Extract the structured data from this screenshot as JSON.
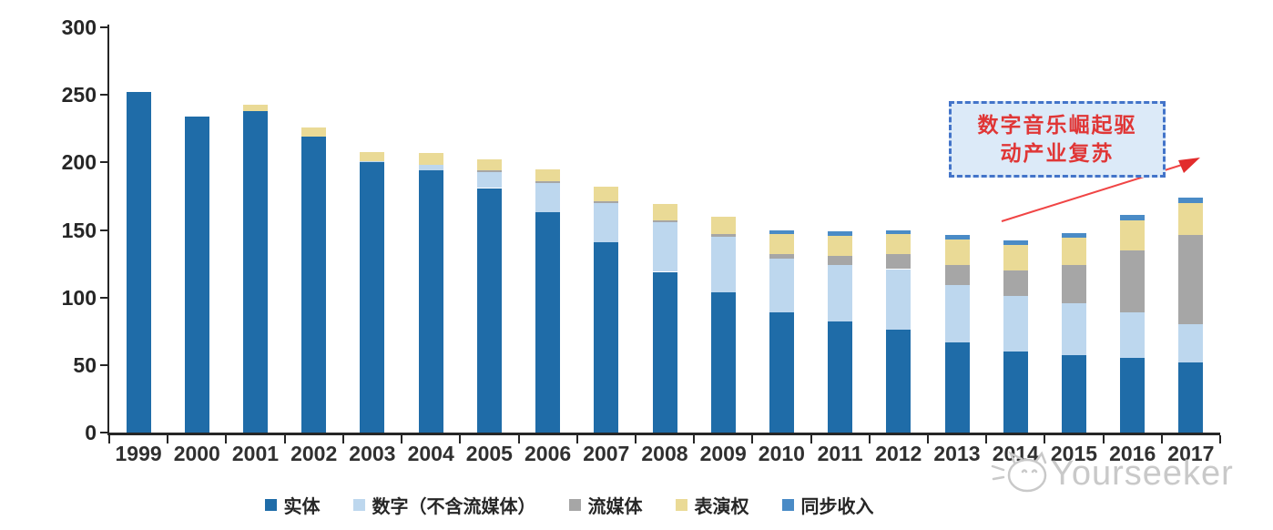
{
  "chart_data": {
    "type": "bar",
    "stacked": true,
    "title": "",
    "xlabel": "",
    "ylabel": "",
    "ylim": [
      0,
      300
    ],
    "y_ticks": [
      0,
      50,
      100,
      150,
      200,
      250,
      300
    ],
    "grid": false,
    "legend_position": "bottom",
    "categories": [
      "1999",
      "2000",
      "2001",
      "2002",
      "2003",
      "2004",
      "2005",
      "2006",
      "2007",
      "2008",
      "2009",
      "2010",
      "2011",
      "2012",
      "2013",
      "2014",
      "2015",
      "2016",
      "2017"
    ],
    "series": [
      {
        "name": "实体",
        "color": "#1F6CA8",
        "values": [
          252,
          234,
          238,
          219,
          200,
          194,
          181,
          163,
          141,
          119,
          104,
          89,
          82,
          76,
          67,
          60,
          57,
          55,
          52
        ]
      },
      {
        "name": "数字（不含流媒体）",
        "color": "#BDD7EE",
        "values": [
          0,
          0,
          0,
          0,
          1,
          4,
          12,
          22,
          29,
          37,
          41,
          40,
          42,
          45,
          42,
          41,
          39,
          34,
          28
        ]
      },
      {
        "name": "流媒体",
        "color": "#A6A6A6",
        "values": [
          0,
          0,
          0,
          0,
          0,
          0,
          1,
          1,
          1,
          1,
          2,
          3,
          7,
          11,
          15,
          19,
          28,
          46,
          66
        ]
      },
      {
        "name": "表演权",
        "color": "#EADA96",
        "values": [
          0,
          0,
          5,
          7,
          7,
          9,
          8,
          9,
          11,
          12,
          13,
          15,
          15,
          15,
          19,
          19,
          20,
          22,
          24
        ]
      },
      {
        "name": "同步收入",
        "color": "#4A8BC6",
        "values": [
          0,
          0,
          0,
          0,
          0,
          0,
          0,
          0,
          0,
          0,
          0,
          3,
          3,
          3,
          3,
          3,
          4,
          4,
          4
        ]
      }
    ]
  },
  "annotation": {
    "line1": "数字音乐崛起驱",
    "line2": "动产业复苏"
  },
  "watermark": {
    "text": "Yourseeker"
  },
  "colors": {
    "axis": "#262626",
    "annotation_fill": "#DCEAF8",
    "annotation_border": "#4374C9",
    "annotation_text": "#E03636",
    "arrow": "#F04545",
    "watermark": "#C9C9C9"
  }
}
